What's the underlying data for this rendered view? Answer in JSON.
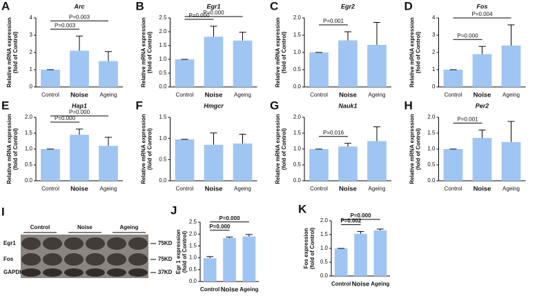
{
  "chart_data": [
    {
      "type": "bar",
      "panel": "A",
      "title": "Arc",
      "ylabel": [
        "Relative mRNA expression",
        "(fold of Control)"
      ],
      "categories": [
        "Control",
        "Noise",
        "Ageing"
      ],
      "values": [
        1,
        2.1,
        1.5
      ],
      "errors": [
        0,
        0.85,
        0.55
      ],
      "color": "#9fc5f2",
      "ylim": [
        0,
        4
      ],
      "yticks": [
        0,
        1,
        2,
        3,
        4
      ],
      "annotations": [
        {
          "text": "P=0.003",
          "between": [
            "Control",
            "Noise"
          ]
        },
        {
          "text": "P=0.003",
          "between": [
            "Control",
            "Ageing"
          ]
        }
      ]
    },
    {
      "type": "bar",
      "panel": "B",
      "title": "Egr1",
      "ylabel": [
        "Relative mRNA expression",
        "(fold of Control)"
      ],
      "categories": [
        "Control",
        "Noise",
        "Ageing"
      ],
      "values": [
        1,
        1.82,
        1.68
      ],
      "errors": [
        0,
        0.38,
        0.3
      ],
      "color": "#9fc5f2",
      "ylim": [
        0,
        2.5
      ],
      "yticks": [
        {
          "value": 0,
          "label": "0.0"
        },
        0.5,
        {
          "value": 1,
          "label": "1.0"
        },
        1.5,
        {
          "value": 2,
          "label": "2.0"
        },
        2.5
      ],
      "annotations": [
        {
          "text": "P=0.000",
          "between": [
            "Control",
            "Noise"
          ]
        },
        {
          "text": "P=0.000",
          "between": [
            "Control",
            "Ageing"
          ]
        }
      ]
    },
    {
      "type": "bar",
      "panel": "C",
      "title": "Egr2",
      "ylabel": [
        "Relative mRNA expression",
        "(fold of Control)"
      ],
      "categories": [
        "Control",
        "Noise",
        "Ageing"
      ],
      "values": [
        1,
        1.35,
        1.22
      ],
      "errors": [
        0,
        0.25,
        0.65
      ],
      "color": "#9fc5f2",
      "ylim": [
        0,
        2
      ],
      "yticks": [
        {
          "value": 0,
          "label": "0.0"
        },
        0.5,
        {
          "value": 1,
          "label": "1.0"
        },
        1.5,
        {
          "value": 2,
          "label": "2.0"
        }
      ],
      "annotations": [
        {
          "text": "P=0.001",
          "between": [
            "Control",
            "Noise"
          ]
        }
      ]
    },
    {
      "type": "bar",
      "panel": "D",
      "title": "Fos",
      "ylabel": [
        "Relative mRNA expression",
        "(fold of Control)"
      ],
      "categories": [
        "Control",
        "Noise",
        "Ageing"
      ],
      "values": [
        1,
        1.9,
        2.4
      ],
      "errors": [
        0,
        0.45,
        1.2
      ],
      "color": "#9fc5f2",
      "ylim": [
        0,
        4
      ],
      "yticks": [
        0,
        1,
        2,
        3,
        4
      ],
      "annotations": [
        {
          "text": "P=0.000",
          "between": [
            "Control",
            "Noise"
          ]
        },
        {
          "text": "P=0.004",
          "between": [
            "Control",
            "Ageing"
          ]
        }
      ]
    },
    {
      "type": "bar",
      "panel": "E",
      "title": "Hap1",
      "ylabel": [
        "Relative mRNA expression",
        "(fold of Control)"
      ],
      "categories": [
        "Control",
        "Noise",
        "Ageing"
      ],
      "values": [
        1,
        1.45,
        1.1
      ],
      "errors": [
        0,
        0.18,
        0.27
      ],
      "color": "#9fc5f2",
      "ylim": [
        0,
        2
      ],
      "yticks": [
        {
          "value": 0,
          "label": "0.0"
        },
        0.5,
        {
          "value": 1,
          "label": "1.0"
        },
        1.5,
        {
          "value": 2,
          "label": "2.0"
        }
      ],
      "annotations": [
        {
          "text": "P=0.000",
          "between": [
            "Control",
            "Noise"
          ]
        },
        {
          "text": "P=0.000",
          "between": [
            "Control",
            "Ageing"
          ]
        }
      ]
    },
    {
      "type": "bar",
      "panel": "F",
      "title": "Hmgcr",
      "ylabel": [
        "Relative mRNA expression",
        "(fold of Control)"
      ],
      "categories": [
        "Control",
        "Noise",
        "Ageing"
      ],
      "values": [
        0.98,
        0.85,
        0.88
      ],
      "errors": [
        0,
        0.28,
        0.22
      ],
      "color": "#9fc5f2",
      "ylim": [
        0,
        1.5
      ],
      "yticks": [
        {
          "value": 0,
          "label": "0.0"
        },
        0.5,
        {
          "value": 1,
          "label": "1.0"
        },
        1.5
      ],
      "annotations": []
    },
    {
      "type": "bar",
      "panel": "G",
      "title": "Nauk1",
      "ylabel": [
        "Relative mRNA expression",
        "(fold of Control)"
      ],
      "categories": [
        "Control",
        "Noise",
        "Ageing"
      ],
      "values": [
        1,
        1.08,
        1.25
      ],
      "errors": [
        0,
        0.1,
        0.45
      ],
      "color": "#9fc5f2",
      "ylim": [
        0,
        2
      ],
      "yticks": [
        {
          "value": 0,
          "label": "0.0"
        },
        0.5,
        {
          "value": 1,
          "label": "1.0"
        },
        1.5,
        {
          "value": 2,
          "label": "2.0"
        }
      ],
      "annotations": [
        {
          "text": "P=0.016",
          "between": [
            "Control",
            "Noise"
          ]
        }
      ]
    },
    {
      "type": "bar",
      "panel": "H",
      "title": "Per2",
      "ylabel": [
        "Relative mRNA expression",
        "(fold of Control)"
      ],
      "categories": [
        "Control",
        "Noise",
        "Ageing"
      ],
      "values": [
        1,
        1.35,
        1.22
      ],
      "errors": [
        0,
        0.25,
        0.65
      ],
      "color": "#9fc5f2",
      "ylim": [
        0,
        2
      ],
      "yticks": [
        {
          "value": 0,
          "label": "0.0"
        },
        0.5,
        {
          "value": 1,
          "label": "1.0"
        },
        1.5,
        {
          "value": 2,
          "label": "2.0"
        }
      ],
      "annotations": [
        {
          "text": "P=0.001",
          "between": [
            "Control",
            "Noise"
          ]
        }
      ]
    },
    {
      "type": "bar",
      "panel": "J",
      "ylabel": [
        "Egr 1 expression",
        "(fold of Control)"
      ],
      "categories": [
        "Control",
        "Noise",
        "Ageing"
      ],
      "values": [
        0.98,
        1.83,
        1.9
      ],
      "errors": [
        0.07,
        0.04,
        0.08
      ],
      "color": "#9fc5f2",
      "ylim": [
        0,
        2.5
      ],
      "yticks": [
        {
          "value": 0,
          "label": "0.0"
        },
        0.5,
        {
          "value": 1,
          "label": "1.0"
        },
        1.5,
        {
          "value": 2,
          "label": "2.0"
        },
        2.5
      ],
      "annotations": [
        {
          "text": "P=0.000",
          "between": [
            "Control",
            "Noise"
          ]
        },
        {
          "text": "P=0.000",
          "between": [
            "Control",
            "Ageing"
          ]
        }
      ]
    },
    {
      "type": "bar",
      "panel": "K",
      "ylabel": [
        "Fos expression",
        "(fold of Control)"
      ],
      "categories": [
        "Control",
        "Noise",
        "Ageing"
      ],
      "values": [
        1,
        1.53,
        1.65
      ],
      "errors": [
        0,
        0.08,
        0.05
      ],
      "color": "#9fc5f2",
      "ylim": [
        0,
        2
      ],
      "yticks": [
        {
          "value": 0,
          "label": "0.0"
        },
        0.5,
        {
          "value": 1,
          "label": "1.0"
        },
        1.5,
        {
          "value": 2,
          "label": "2.0"
        }
      ],
      "annotations": [
        {
          "text": "P=0.002",
          "between": [
            "Control",
            "Noise"
          ]
        },
        {
          "text": "P=0.000",
          "between": [
            "Control",
            "Ageing"
          ]
        }
      ]
    }
  ],
  "blot": {
    "panel": "I",
    "groups": [
      "Control",
      "Noise",
      "Ageing"
    ],
    "rows": [
      {
        "label": "Egr1",
        "size": "75KD"
      },
      {
        "label": "Fos",
        "size": "75KD"
      },
      {
        "label": "GAPDH",
        "size": "37KD"
      }
    ]
  }
}
